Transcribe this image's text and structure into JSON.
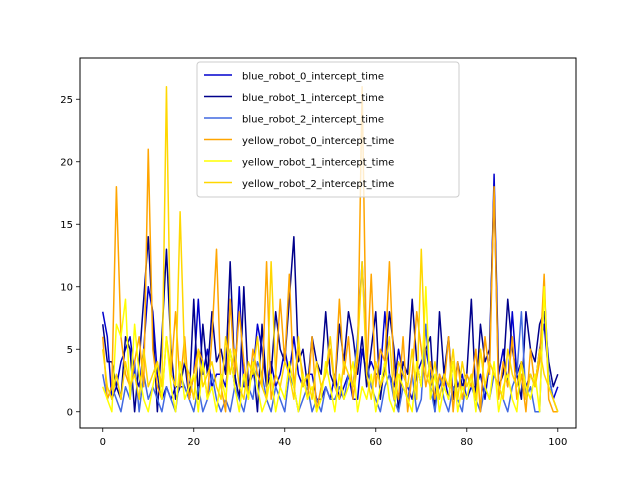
{
  "chart_data": {
    "type": "line",
    "title": "",
    "xlabel": "",
    "ylabel": "",
    "xlim": [
      -5,
      104
    ],
    "ylim": [
      -1.3,
      28.3
    ],
    "xticks": [
      0,
      20,
      40,
      60,
      80,
      100
    ],
    "yticks": [
      0,
      5,
      10,
      15,
      20,
      25
    ],
    "legend_position": "top-center",
    "grid": false,
    "series": [
      {
        "name": "blue_robot_0_intercept_time",
        "color": "#0000cd",
        "values": [
          8,
          6,
          1,
          2,
          4,
          5,
          6,
          3,
          2,
          5,
          10,
          8,
          3,
          1,
          2,
          1,
          2,
          2,
          2,
          1,
          3,
          9,
          3,
          5,
          2,
          3,
          3,
          2,
          5,
          2,
          10,
          2,
          2,
          3,
          7,
          5,
          2,
          4,
          2,
          3,
          5,
          3,
          6,
          3,
          2,
          3,
          3,
          1,
          1,
          2,
          1,
          3,
          1,
          2,
          3,
          1,
          1,
          5,
          3,
          4,
          3,
          3,
          8,
          3,
          2,
          5,
          3,
          2,
          1,
          3,
          4,
          5,
          3,
          1,
          2,
          3,
          1,
          4,
          2,
          3,
          1,
          2,
          2,
          3,
          1,
          4,
          19,
          3,
          5,
          2,
          8,
          3,
          4,
          2,
          3,
          2,
          5,
          7,
          3,
          1,
          2
        ]
      },
      {
        "name": "blue_robot_1_intercept_time",
        "color": "#00008b",
        "values": [
          7,
          4,
          4,
          2,
          1,
          6,
          5,
          0,
          4,
          9,
          14,
          7,
          0,
          6,
          13,
          5,
          1,
          2,
          4,
          1,
          9,
          1,
          7,
          3,
          8,
          4,
          5,
          3,
          12,
          3,
          1,
          10,
          2,
          4,
          0,
          7,
          2,
          3,
          8,
          5,
          4,
          9,
          14,
          4,
          5,
          2,
          6,
          4,
          3,
          8,
          3,
          2,
          7,
          4,
          8,
          6,
          3,
          6,
          2,
          5,
          8,
          1,
          4,
          8,
          5,
          0,
          4,
          3,
          9,
          4,
          2,
          5,
          6,
          0,
          8,
          3,
          6,
          1,
          4,
          2,
          3,
          9,
          1,
          7,
          4,
          5,
          18,
          2,
          3,
          9,
          5,
          3,
          1,
          8,
          5,
          4,
          7,
          8,
          4,
          2,
          3
        ]
      },
      {
        "name": "blue_robot_2_intercept_time",
        "color": "#4169e1",
        "values": [
          3,
          1,
          2,
          1,
          0,
          2,
          1,
          4,
          0,
          3,
          1,
          2,
          1,
          0,
          2,
          1,
          0,
          3,
          2,
          1,
          0,
          2,
          0,
          1,
          3,
          1,
          0,
          1,
          0,
          2,
          1,
          0,
          2,
          1,
          4,
          3,
          1,
          0,
          2,
          1,
          0,
          3,
          2,
          0,
          1,
          2,
          0,
          1,
          0,
          2,
          1,
          1,
          2,
          1,
          3,
          2,
          6,
          12,
          4,
          2,
          1,
          0,
          2,
          3,
          1,
          0,
          2,
          1,
          3,
          0,
          1,
          7,
          2,
          0,
          3,
          1,
          0,
          2,
          1,
          0,
          3,
          2,
          1,
          0,
          2,
          1,
          3,
          2,
          1,
          0,
          2,
          3,
          8,
          1,
          2,
          0,
          0,
          10,
          3,
          1,
          0
        ]
      },
      {
        "name": "yellow_robot_0_intercept_time",
        "color": "#ffa500",
        "values": [
          6,
          1,
          2,
          18,
          6,
          3,
          2,
          4,
          6,
          2,
          21,
          5,
          2,
          1,
          6,
          3,
          8,
          2,
          6,
          1,
          3,
          5,
          4,
          1,
          6,
          13,
          2,
          0,
          9,
          3,
          8,
          4,
          1,
          5,
          3,
          2,
          12,
          1,
          3,
          9,
          4,
          11,
          2,
          5,
          3,
          1,
          6,
          0,
          2,
          3,
          5,
          2,
          9,
          3,
          6,
          1,
          4,
          26,
          3,
          11,
          2,
          5,
          4,
          12,
          3,
          1,
          6,
          0,
          3,
          8,
          5,
          2,
          4,
          1,
          3,
          2,
          6,
          0,
          4,
          1,
          3,
          2,
          5,
          0,
          6,
          3,
          18,
          1,
          4,
          2,
          6,
          1,
          3,
          0,
          5,
          2,
          4,
          11,
          1,
          0,
          0
        ]
      },
      {
        "name": "yellow_robot_1_intercept_time",
        "color": "#ffff00",
        "values": [
          2,
          1,
          0,
          7,
          6,
          9,
          1,
          7,
          3,
          1,
          0,
          2,
          4,
          1,
          6,
          2,
          0,
          4,
          1,
          2,
          3,
          0,
          4,
          1,
          2,
          0,
          3,
          1,
          5,
          2,
          0,
          3,
          1,
          4,
          2,
          0,
          1,
          3,
          0,
          2,
          1,
          4,
          2,
          0,
          3,
          1,
          2,
          0,
          1,
          4,
          2,
          0,
          3,
          1,
          2,
          4,
          0,
          2,
          1,
          3,
          0,
          2,
          4,
          1,
          0,
          3,
          2,
          1,
          0,
          4,
          2,
          10,
          1,
          3,
          0,
          2,
          1,
          4,
          0,
          2,
          1,
          3,
          0,
          5,
          2,
          1,
          4,
          0,
          2,
          3,
          1,
          0,
          4,
          2,
          1,
          3,
          0,
          10,
          2,
          1,
          0
        ]
      },
      {
        "name": "yellow_robot_2_intercept_time",
        "color": "#ffd700",
        "values": [
          5,
          2,
          1,
          3,
          1,
          4,
          2,
          3,
          1,
          5,
          2,
          3,
          4,
          2,
          26,
          3,
          2,
          16,
          4,
          3,
          1,
          5,
          2,
          3,
          4,
          2,
          1,
          6,
          3,
          5,
          2,
          1,
          4,
          3,
          6,
          2,
          1,
          12,
          3,
          2,
          4,
          3,
          1,
          6,
          2,
          3,
          1,
          4,
          2,
          3,
          6,
          2,
          1,
          4,
          3,
          2,
          5,
          12,
          3,
          1,
          4,
          2,
          3,
          6,
          1,
          4,
          3,
          2,
          5,
          1,
          13,
          3,
          2,
          4,
          1,
          3,
          2,
          5,
          1,
          4,
          2,
          3,
          1,
          5,
          2,
          4,
          3,
          2,
          1,
          5,
          3,
          2,
          4,
          1,
          3,
          2,
          5,
          3,
          2,
          1,
          0
        ]
      }
    ]
  }
}
